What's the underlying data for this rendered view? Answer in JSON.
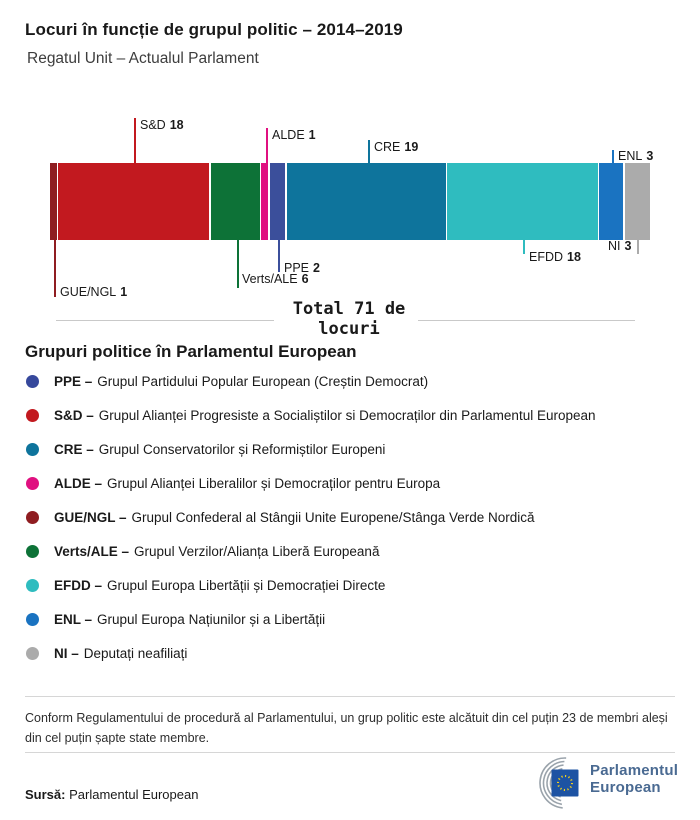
{
  "header": {
    "title": "Locuri în funcție de grupul politic – 2014–2019",
    "subtitle": "Regatul Unit – Actualul Parlament"
  },
  "chart_data": {
    "type": "bar",
    "orientation": "horizontal-stacked",
    "total": 71,
    "total_label": "Total 71 de locuri",
    "groups": [
      {
        "name": "GUE/NGL",
        "seats": 1,
        "color": "#8f1d21",
        "label_position": "below"
      },
      {
        "name": "S&D",
        "seats": 18,
        "color": "#c2191f",
        "label_position": "above"
      },
      {
        "name": "Verts/ALE",
        "seats": 6,
        "color": "#0d7237",
        "label_position": "below"
      },
      {
        "name": "ALDE",
        "seats": 1,
        "color": "#e01080",
        "label_position": "above"
      },
      {
        "name": "PPE",
        "seats": 2,
        "color": "#3b4f9b",
        "label_position": "below"
      },
      {
        "name": "CRE",
        "seats": 19,
        "color": "#0e749c",
        "label_position": "above"
      },
      {
        "name": "EFDD",
        "seats": 18,
        "color": "#2fbcbf",
        "label_position": "below"
      },
      {
        "name": "ENL",
        "seats": 3,
        "color": "#1a73c1",
        "label_position": "above"
      },
      {
        "name": "NI",
        "seats": 3,
        "color": "#ababab",
        "label_position": "below"
      }
    ]
  },
  "legend": {
    "heading": "Grupuri politice în Parlamentul European",
    "items": [
      {
        "label": "PPE –",
        "color": "#36489c",
        "description": "Grupul Partidului Popular European (Creștin Democrat)"
      },
      {
        "label": "S&D –",
        "color": "#c2191f",
        "description": "Grupul Alianței Progresiste a Socialiștilor si Democraților din Parlamentul European"
      },
      {
        "label": "CRE –",
        "color": "#0e749c",
        "description": "Grupul Conservatorilor și Reformiștilor Europeni"
      },
      {
        "label": "ALDE –",
        "color": "#e01080",
        "description": "Grupul Alianței Liberalilor și Democraților pentru Europa"
      },
      {
        "label": "GUE/NGL –",
        "color": "#8f1d21",
        "description": "Grupul Confederal al Stângii Unite Europene/Stânga Verde Nordică"
      },
      {
        "label": "Verts/ALE –",
        "color": "#0d7237",
        "description": "Grupul Verzilor/Alianța Liberă Europeană"
      },
      {
        "label": "EFDD –",
        "color": "#2fbcbf",
        "description": "Grupul Europa Libertății și Democrației Directe"
      },
      {
        "label": "ENL –",
        "color": "#1a73c1",
        "description": "Grupul Europa Națiunilor și a Libertății"
      },
      {
        "label": "NI –",
        "color": "#ababab",
        "description": "Deputați neafiliați"
      }
    ]
  },
  "footnote": "Conform Regulamentului de procedură al Parlamentului, un grup politic este alcătuit din cel puțin 23 de membri aleși din cel puțin șapte state membre.",
  "source": {
    "label": "Sursă:",
    "text": "Parlamentul European"
  },
  "logo": {
    "line1": "Parlamentul",
    "line2": "European",
    "flag_color": "#1d53a3",
    "star_color": "#f7d117"
  }
}
